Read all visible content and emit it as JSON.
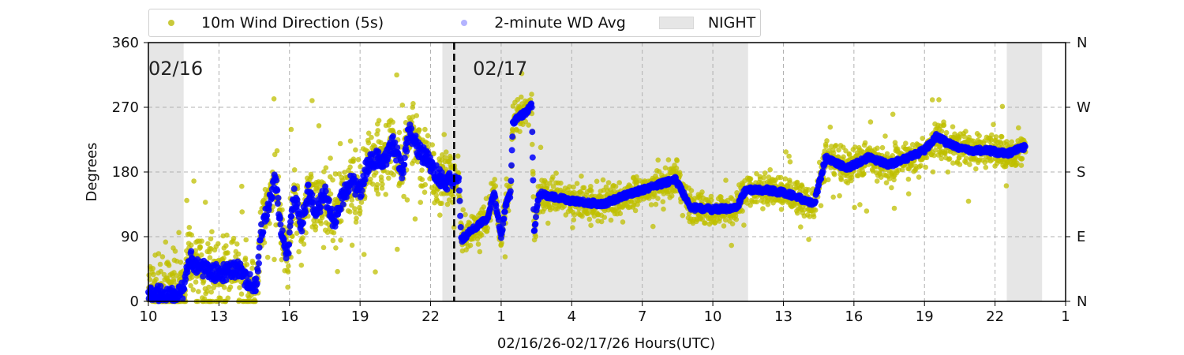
{
  "chart_data": {
    "type": "scatter",
    "xlabel": "02/16/26-02/17/26  Hours(UTC)",
    "ylabel": "Degrees",
    "x_units": "hours since 02/16 00:00 UTC",
    "xlim": [
      10,
      49
    ],
    "ylim": [
      0,
      360
    ],
    "x_ticks": [
      10,
      13,
      16,
      19,
      22,
      25,
      28,
      31,
      34,
      37,
      40,
      43,
      46,
      49
    ],
    "x_tick_labels": [
      "10",
      "13",
      "16",
      "19",
      "22",
      "1",
      "4",
      "7",
      "10",
      "13",
      "16",
      "19",
      "22",
      "1"
    ],
    "y_ticks": [
      0,
      90,
      180,
      270,
      360
    ],
    "y_tick_labels": [
      "0",
      "90",
      "180",
      "270",
      "360"
    ],
    "y2_tick_labels": [
      "N",
      "E",
      "S",
      "W",
      "N"
    ],
    "grid": true,
    "legend_position": "top-center outside",
    "legend": [
      "10m Wind Direction (5s)",
      "2-minute WD Avg",
      "NIGHT"
    ],
    "date_labels": [
      {
        "x": 10,
        "text": "02/16"
      },
      {
        "x": 23.8,
        "text": "02/17"
      }
    ],
    "midnight_marker_x": 23.0,
    "night_periods": [
      [
        10,
        11.5
      ],
      [
        22.5,
        35.5
      ],
      [
        46.5,
        48.0
      ]
    ],
    "colors": {
      "wd5s": "#bfbf00",
      "avg": "#0000ff",
      "night": "#e6e6e6"
    },
    "series": [
      {
        "name": "2-minute WD Avg",
        "points": [
          [
            10.0,
            15
          ],
          [
            10.5,
            10
          ],
          [
            11.0,
            12
          ],
          [
            11.5,
            15
          ],
          [
            11.75,
            60
          ],
          [
            12.1,
            50
          ],
          [
            12.6,
            40
          ],
          [
            13.3,
            40
          ],
          [
            13.8,
            45
          ],
          [
            14.2,
            30
          ],
          [
            14.6,
            20
          ],
          [
            14.8,
            100
          ],
          [
            15.1,
            130
          ],
          [
            15.4,
            170
          ],
          [
            15.6,
            110
          ],
          [
            15.9,
            60
          ],
          [
            16.2,
            150
          ],
          [
            16.5,
            100
          ],
          [
            16.8,
            160
          ],
          [
            17.1,
            120
          ],
          [
            17.5,
            150
          ],
          [
            17.9,
            110
          ],
          [
            18.2,
            140
          ],
          [
            18.6,
            170
          ],
          [
            19.0,
            150
          ],
          [
            19.3,
            190
          ],
          [
            19.7,
            200
          ],
          [
            20.0,
            190
          ],
          [
            20.4,
            220
          ],
          [
            20.8,
            180
          ],
          [
            21.1,
            240
          ],
          [
            21.5,
            210
          ],
          [
            21.9,
            195
          ],
          [
            22.3,
            175
          ],
          [
            22.7,
            165
          ],
          [
            23.0,
            170
          ],
          [
            23.2,
            170
          ],
          [
            23.3,
            85
          ],
          [
            23.6,
            95
          ],
          [
            24.0,
            105
          ],
          [
            24.4,
            115
          ],
          [
            24.7,
            150
          ],
          [
            25.0,
            90
          ],
          [
            25.2,
            135
          ],
          [
            25.4,
            150
          ],
          [
            25.5,
            250
          ],
          [
            26.0,
            262
          ],
          [
            26.3,
            272
          ],
          [
            26.4,
            95
          ],
          [
            26.6,
            150
          ],
          [
            27.2,
            145
          ],
          [
            28.0,
            140
          ],
          [
            29.3,
            135
          ],
          [
            30.5,
            150
          ],
          [
            31.5,
            160
          ],
          [
            32.4,
            170
          ],
          [
            33.1,
            130
          ],
          [
            34.0,
            128
          ],
          [
            35.0,
            130
          ],
          [
            35.4,
            155
          ],
          [
            36.3,
            155
          ],
          [
            37.2,
            150
          ],
          [
            38.3,
            135
          ],
          [
            38.8,
            200
          ],
          [
            39.7,
            185
          ],
          [
            40.6,
            200
          ],
          [
            41.5,
            190
          ],
          [
            42.3,
            200
          ],
          [
            43.0,
            210
          ],
          [
            43.5,
            230
          ],
          [
            44.0,
            220
          ],
          [
            44.8,
            210
          ],
          [
            45.7,
            210
          ],
          [
            46.5,
            205
          ],
          [
            47.3,
            215
          ]
        ]
      },
      {
        "name": "10m Wind Direction (5s)",
        "derived_from": "2-minute WD Avg",
        "spread_deg_before_midnight": 45,
        "spread_deg_after_midnight": 22
      }
    ]
  }
}
